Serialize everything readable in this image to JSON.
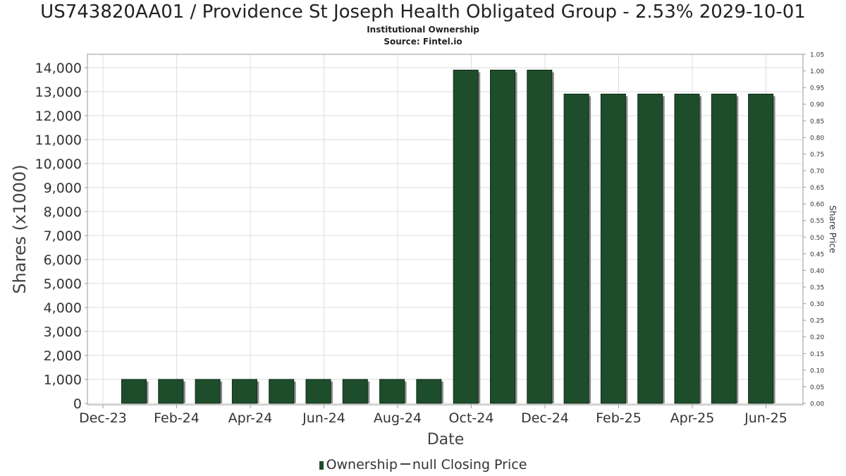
{
  "title": "US743820AA01 / Providence St Joseph Health Obligated Group - 2.53% 2029-10-01",
  "subtitle": "Institutional Ownership",
  "source": "Source: Fintel.io",
  "legend": {
    "ownership_label": "Ownership",
    "price_label": "null Closing Price"
  },
  "colors": {
    "bar": "#1e4d2b",
    "bar_shadow": "#8a8a8a",
    "grid": "#dddddd"
  },
  "chart_data": {
    "type": "bar",
    "title": "US743820AA01 / Providence St Joseph Health Obligated Group - 2.53% 2029-10-01",
    "subtitle": "Institutional Ownership",
    "xlabel": "Date",
    "ylabel": "Shares (x1000)",
    "y2label": "Share Price",
    "x_ticks": [
      "Dec-23",
      "Feb-24",
      "Apr-24",
      "Jun-24",
      "Aug-24",
      "Oct-24",
      "Dec-24",
      "Feb-25",
      "Apr-25",
      "Jun-25"
    ],
    "ylim": [
      0,
      14500
    ],
    "y_ticks": [
      0,
      1000,
      2000,
      3000,
      4000,
      5000,
      6000,
      7000,
      8000,
      9000,
      10000,
      11000,
      12000,
      13000,
      14000
    ],
    "y2lim": [
      0,
      1.05
    ],
    "y2_ticks": [
      0.0,
      0.05,
      0.1,
      0.15,
      0.2,
      0.25,
      0.3,
      0.35,
      0.4,
      0.45,
      0.5,
      0.55,
      0.6,
      0.65,
      0.7,
      0.75,
      0.8,
      0.85,
      0.9,
      0.95,
      1.0,
      1.05
    ],
    "grid": true,
    "legend_position": "bottom",
    "series": [
      {
        "name": "Ownership",
        "values": [
          1000,
          1000,
          1000,
          1000,
          1000,
          1000,
          1000,
          1000,
          1000,
          13900,
          13900,
          13900,
          12900,
          12900,
          12900,
          12900,
          12900,
          12900
        ]
      }
    ]
  }
}
